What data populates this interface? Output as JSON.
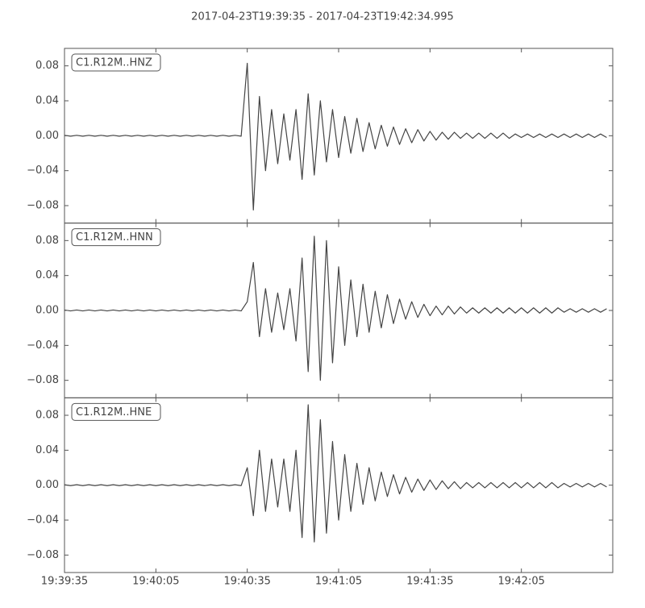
{
  "title": "2017-04-23T19:39:35  -  2017-04-23T19:42:34.995",
  "chart_data": [
    {
      "type": "line",
      "name": "C1.R12M..HNZ",
      "color": "#444444",
      "ylim": [
        -0.1,
        0.1
      ],
      "yticks": [
        {
          "value": -0.08,
          "label": "−0.08"
        },
        {
          "value": -0.04,
          "label": "−0.04"
        },
        {
          "value": 0,
          "label": "0.00"
        },
        0.04,
        0.08
      ],
      "values": [
        0.0005,
        -0.0005,
        0.0005,
        -0.0005,
        0.0005,
        -0.0005,
        0.0005,
        -0.0005,
        0.0005,
        -0.0005,
        0.0005,
        -0.0005,
        0.0005,
        -0.0005,
        0.0005,
        -0.0005,
        0.0005,
        -0.0005,
        0.0005,
        -0.0005,
        0.0005,
        -0.0005,
        0.0005,
        -0.0005,
        0.0005,
        -0.0005,
        0.0005,
        -0.0005,
        0.0005,
        -0.0005,
        0.083,
        -0.085,
        0.045,
        -0.04,
        0.03,
        -0.032,
        0.025,
        -0.028,
        0.03,
        -0.05,
        0.048,
        -0.045,
        0.04,
        -0.03,
        0.03,
        -0.025,
        0.022,
        -0.02,
        0.02,
        -0.018,
        0.015,
        -0.015,
        0.012,
        -0.012,
        0.01,
        -0.01,
        0.008,
        -0.008,
        0.007,
        -0.006,
        0.005,
        -0.005,
        0.004,
        -0.004,
        0.004,
        -0.003,
        0.003,
        -0.003,
        0.003,
        -0.003,
        0.003,
        -0.003,
        0.003,
        -0.003,
        0.002,
        -0.002,
        0.002,
        -0.002,
        0.002,
        -0.002,
        0.002,
        -0.002,
        0.002,
        -0.002,
        0.002,
        -0.002,
        0.002,
        -0.002,
        0.002,
        -0.002
      ]
    },
    {
      "type": "line",
      "name": "C1.R12M..HNN",
      "color": "#444444",
      "ylim": [
        -0.1,
        0.1
      ],
      "yticks": [
        {
          "value": -0.08,
          "label": "−0.08"
        },
        {
          "value": -0.04,
          "label": "−0.04"
        },
        {
          "value": 0,
          "label": "0.00"
        },
        0.04,
        0.08
      ],
      "values": [
        0.0005,
        -0.0005,
        0.0005,
        -0.0005,
        0.0005,
        -0.0005,
        0.0005,
        -0.0005,
        0.0005,
        -0.0005,
        0.0005,
        -0.0005,
        0.0005,
        -0.0005,
        0.0005,
        -0.0005,
        0.0005,
        -0.0005,
        0.0005,
        -0.0005,
        0.0005,
        -0.0005,
        0.0005,
        -0.0005,
        0.0005,
        -0.0005,
        0.0005,
        -0.0005,
        0.0005,
        -0.0005,
        0.01,
        0.055,
        -0.03,
        0.025,
        -0.025,
        0.02,
        -0.022,
        0.025,
        -0.035,
        0.06,
        -0.07,
        0.085,
        -0.08,
        0.08,
        -0.06,
        0.05,
        -0.04,
        0.035,
        -0.03,
        0.03,
        -0.025,
        0.022,
        -0.02,
        0.018,
        -0.015,
        0.013,
        -0.01,
        0.01,
        -0.008,
        0.007,
        -0.006,
        0.005,
        -0.005,
        0.005,
        -0.004,
        0.004,
        -0.003,
        0.003,
        -0.003,
        0.003,
        -0.003,
        0.003,
        -0.003,
        0.003,
        -0.003,
        0.003,
        -0.003,
        0.003,
        -0.003,
        0.003,
        -0.003,
        0.003,
        -0.002,
        0.002,
        -0.002,
        0.002,
        -0.002,
        0.002,
        -0.002,
        0.002
      ]
    },
    {
      "type": "line",
      "name": "C1.R12M..HNE",
      "color": "#444444",
      "ylim": [
        -0.1,
        0.1
      ],
      "yticks": [
        {
          "value": -0.08,
          "label": "−0.08"
        },
        {
          "value": -0.04,
          "label": "−0.04"
        },
        {
          "value": 0,
          "label": "0.00"
        },
        0.04,
        0.08
      ],
      "xlim": [
        "19:39:35",
        "19:42:34.995"
      ],
      "xticks": [
        "19:39:35",
        "19:40:05",
        "19:40:35",
        "19:41:05",
        "19:41:35",
        "19:42:05"
      ],
      "x": [
        "19:39:35",
        "19:39:37",
        "19:39:39",
        "19:39:41",
        "19:39:43",
        "19:39:45",
        "19:39:47",
        "19:39:49",
        "19:39:51",
        "19:39:53",
        "19:39:55",
        "19:39:57",
        "19:39:59",
        "19:40:01",
        "19:40:03",
        "19:40:05",
        "19:40:07",
        "19:40:09",
        "19:40:11",
        "19:40:13",
        "19:40:15",
        "19:40:17",
        "19:40:19",
        "19:40:21",
        "19:40:23",
        "19:40:25",
        "19:40:27",
        "19:40:29",
        "19:40:31",
        "19:40:33",
        "19:40:35",
        "19:40:37",
        "19:40:39",
        "19:40:41",
        "19:40:43",
        "19:40:45",
        "19:40:47",
        "19:40:49",
        "19:40:51",
        "19:40:53",
        "19:40:55",
        "19:40:57",
        "19:40:59",
        "19:41:01",
        "19:41:03",
        "19:41:05",
        "19:41:07",
        "19:41:09",
        "19:41:11",
        "19:41:13",
        "19:41:15",
        "19:41:17",
        "19:41:19",
        "19:41:21",
        "19:41:23",
        "19:41:25",
        "19:41:27",
        "19:41:29",
        "19:41:31",
        "19:41:33",
        "19:41:35",
        "19:41:37",
        "19:41:39",
        "19:41:41",
        "19:41:43",
        "19:41:45",
        "19:41:47",
        "19:41:49",
        "19:41:51",
        "19:41:53",
        "19:41:55",
        "19:41:57",
        "19:41:59",
        "19:42:01",
        "19:42:03",
        "19:42:05",
        "19:42:07",
        "19:42:09",
        "19:42:11",
        "19:42:13",
        "19:42:15",
        "19:42:17",
        "19:42:19",
        "19:42:21",
        "19:42:23",
        "19:42:25",
        "19:42:27",
        "19:42:29",
        "19:42:31",
        "19:42:33"
      ],
      "values": [
        0.0005,
        -0.0005,
        0.0005,
        -0.0005,
        0.0005,
        -0.0005,
        0.0005,
        -0.0005,
        0.0005,
        -0.0005,
        0.0005,
        -0.0005,
        0.0005,
        -0.0005,
        0.0005,
        -0.0005,
        0.0005,
        -0.0005,
        0.0005,
        -0.0005,
        0.0005,
        -0.0005,
        0.0005,
        -0.0005,
        0.0005,
        -0.0005,
        0.0005,
        -0.0005,
        0.0005,
        -0.0005,
        0.02,
        -0.035,
        0.04,
        -0.03,
        0.03,
        -0.025,
        0.03,
        -0.03,
        0.04,
        -0.06,
        0.092,
        -0.065,
        0.075,
        -0.055,
        0.05,
        -0.04,
        0.035,
        -0.03,
        0.025,
        -0.022,
        0.02,
        -0.018,
        0.015,
        -0.013,
        0.012,
        -0.01,
        0.009,
        -0.008,
        0.007,
        -0.006,
        0.006,
        -0.005,
        0.005,
        -0.004,
        0.004,
        -0.004,
        0.003,
        -0.003,
        0.003,
        -0.003,
        0.003,
        -0.003,
        0.003,
        -0.003,
        0.003,
        -0.003,
        0.003,
        -0.003,
        0.003,
        -0.003,
        0.003,
        -0.003,
        0.002,
        -0.002,
        0.002,
        -0.002,
        0.002,
        -0.002,
        0.002,
        -0.002
      ]
    }
  ]
}
